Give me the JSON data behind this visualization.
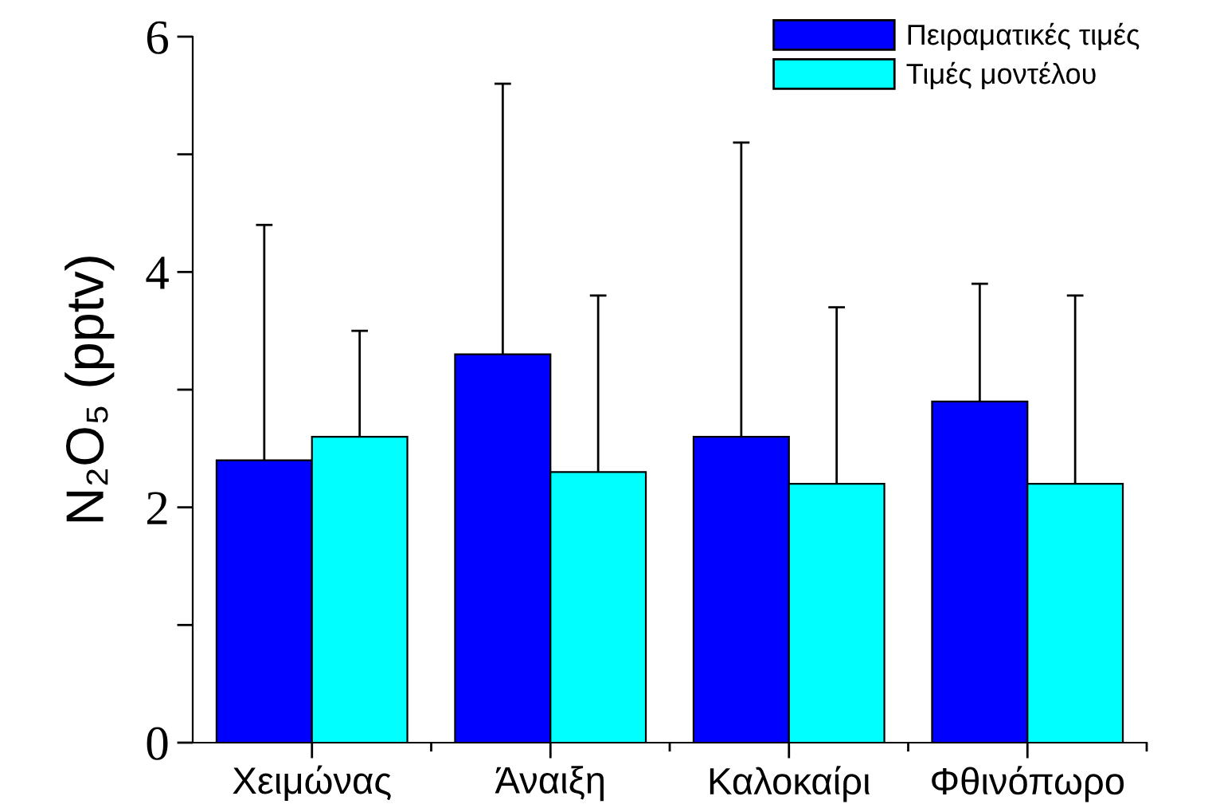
{
  "chart_data": {
    "type": "bar",
    "ylabel": "N₂O₅ (pptv)",
    "categories": [
      "Χειμώνας",
      "Άναιξη",
      "Καλοκαίρι",
      "Φθινόπωρο"
    ],
    "series": [
      {
        "name": "Πειραματικές τιμές",
        "color": "#0000ff",
        "values": [
          2.4,
          3.3,
          2.6,
          2.9
        ],
        "errors": [
          [
            2.4,
            4.4
          ],
          [
            3.3,
            5.6
          ],
          [
            2.6,
            5.1
          ],
          [
            2.9,
            3.9
          ]
        ]
      },
      {
        "name": "Τιμές μοντέλου",
        "color": "#00ffff",
        "values": [
          2.6,
          2.3,
          2.2,
          2.2
        ],
        "errors": [
          [
            2.6,
            3.5
          ],
          [
            2.3,
            3.8
          ],
          [
            2.2,
            3.7
          ],
          [
            2.2,
            3.8
          ]
        ]
      }
    ],
    "ylim": [
      0,
      6
    ],
    "yticks": [
      0,
      {
        "value": 1,
        "label": null
      },
      2,
      {
        "value": 3,
        "label": null
      },
      4,
      {
        "value": 5,
        "label": null
      },
      6
    ],
    "grid": false,
    "legend": "top right"
  }
}
